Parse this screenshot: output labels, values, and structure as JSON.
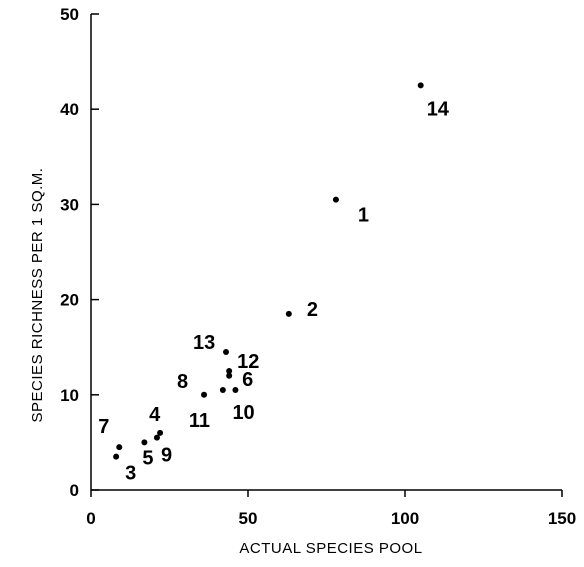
{
  "chart_data": {
    "type": "scatter",
    "title": "",
    "xlabel": "ACTUAL SPECIES POOL",
    "ylabel": "SPECIES RICHNESS PER 1 SQ.M.",
    "xlim": [
      0,
      150
    ],
    "ylim": [
      0,
      50
    ],
    "x_ticks": [
      "0",
      "50",
      "100",
      "150"
    ],
    "y_ticks": [
      "0",
      "10",
      "20",
      "30",
      "40",
      "50"
    ],
    "grid": false,
    "points": [
      {
        "label": "1",
        "x": 78,
        "y": 30.5
      },
      {
        "label": "2",
        "x": 63,
        "y": 18.5
      },
      {
        "label": "3",
        "x": 8,
        "y": 3.5
      },
      {
        "label": "4",
        "x": 22,
        "y": 6
      },
      {
        "label": "5",
        "x": 17,
        "y": 5
      },
      {
        "label": "6",
        "x": 44,
        "y": 12
      },
      {
        "label": "7",
        "x": 9,
        "y": 4.5
      },
      {
        "label": "8",
        "x": 36,
        "y": 10
      },
      {
        "label": "9",
        "x": 21,
        "y": 5.5
      },
      {
        "label": "10",
        "x": 46,
        "y": 10.5
      },
      {
        "label": "11",
        "x": 42,
        "y": 10.5
      },
      {
        "label": "12",
        "x": 44,
        "y": 12.5
      },
      {
        "label": "13",
        "x": 43,
        "y": 14.5
      },
      {
        "label": "14",
        "x": 105,
        "y": 42.5
      }
    ]
  }
}
